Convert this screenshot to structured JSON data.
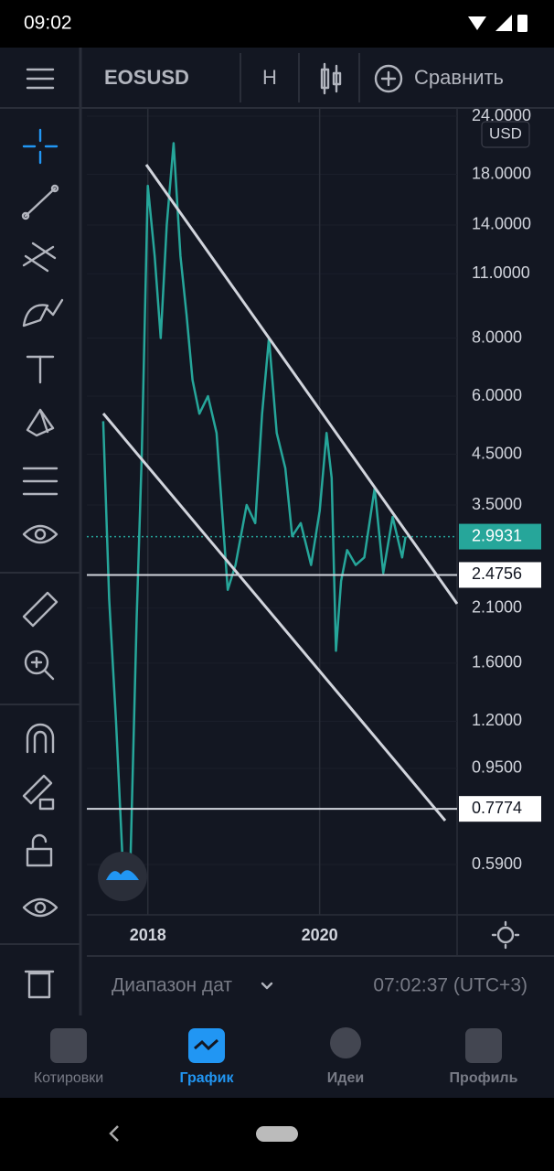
{
  "status_bar": {
    "time": "09:02"
  },
  "toolbar": {
    "symbol": "EOSUSD",
    "interval": "H",
    "compare": "Сравнить"
  },
  "chart_data": {
    "type": "line",
    "currency": "USD",
    "log_scale": true,
    "grid": true,
    "color": "#26a69a",
    "x": [
      2017.48,
      2017.55,
      2017.63,
      2017.71,
      2017.8,
      2017.87,
      2017.93,
      2018.0,
      2018.08,
      2018.15,
      2018.22,
      2018.3,
      2018.38,
      2018.45,
      2018.52,
      2018.6,
      2018.7,
      2018.8,
      2018.93,
      2019.02,
      2019.15,
      2019.25,
      2019.33,
      2019.41,
      2019.5,
      2019.6,
      2019.68,
      2019.78,
      2019.9,
      2020.0,
      2020.08,
      2020.14,
      2020.19,
      2020.25,
      2020.32,
      2020.42,
      2020.52,
      2020.64,
      2020.74,
      2020.85,
      2020.96,
      2021.0
    ],
    "values": [
      5.3,
      2.2,
      1.2,
      0.58,
      0.62,
      2.0,
      4.5,
      17,
      12,
      8,
      14,
      21,
      12,
      9,
      6.5,
      5.5,
      6.0,
      5.0,
      2.3,
      2.6,
      3.5,
      3.2,
      5.5,
      8.0,
      5.0,
      4.2,
      3.0,
      3.2,
      2.6,
      3.4,
      5.0,
      4.0,
      1.7,
      2.4,
      2.8,
      2.6,
      2.7,
      3.8,
      2.5,
      3.3,
      2.7,
      2.9931
    ],
    "xlim": [
      2017.29,
      2021.6
    ],
    "xticks": [
      2018,
      2020
    ],
    "ylim": [
      0.46,
      25
    ],
    "yticks": [
      {
        "value": 24,
        "label": "24.0000"
      },
      {
        "value": 18,
        "label": "18.0000"
      },
      {
        "value": 14,
        "label": "14.0000"
      },
      {
        "value": 11,
        "label": "11.0000"
      },
      {
        "value": 8,
        "label": "8.0000"
      },
      {
        "value": 6,
        "label": "6.0000"
      },
      {
        "value": 4.5,
        "label": "4.5000"
      },
      {
        "value": 3.5,
        "label": "3.5000"
      },
      {
        "value": 2.1,
        "label": "2.1000"
      },
      {
        "value": 1.6,
        "label": "1.6000"
      },
      {
        "value": 1.2,
        "label": "1.2000"
      },
      {
        "value": 0.95,
        "label": "0.9500"
      },
      {
        "value": 0.59,
        "label": "0.5900"
      }
    ],
    "current_price": 2.9931,
    "current_color": "#26a69a",
    "horizontal_lines": [
      2.4756,
      0.7774
    ]
  },
  "footer": {
    "date_range": "Диапазон дат",
    "clock": "07:02:37 (UTC+3)"
  },
  "nav": {
    "items": [
      "Котировки",
      "График",
      "Идеи",
      "Профиль"
    ]
  }
}
